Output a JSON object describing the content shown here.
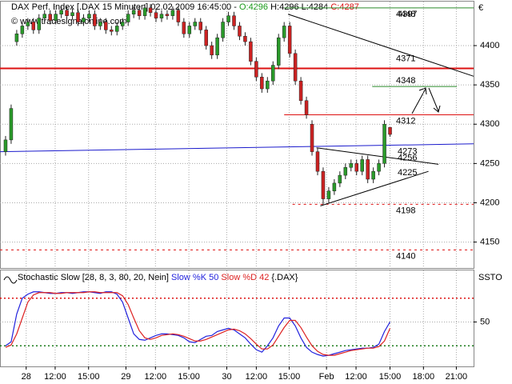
{
  "chart_data": {
    "type": "candlestick",
    "header": [
      "DAX Perf. Index [.DAX  15 Minuten] 02.02.2009 16:45:00 - ",
      "O:4296",
      " H:4296 L:4284 ",
      "C:4287"
    ],
    "watermark": "© www.tradesignalonline.com",
    "currency": "€",
    "up_color": "#2a9a2a",
    "down_color": "#cc2222",
    "xlim": [
      0,
      85
    ],
    "xticks": [
      {
        "value": 4.7,
        "label": "28"
      },
      {
        "value": 9.9,
        "label": "12:00"
      },
      {
        "value": 15.9,
        "label": "15:00"
      },
      {
        "value": 22.6,
        "label": "29"
      },
      {
        "value": 27.9,
        "label": "12:00"
      },
      {
        "value": 33.9,
        "label": "15:00"
      },
      {
        "value": 40.7,
        "label": "30"
      },
      {
        "value": 46,
        "label": "12:00"
      },
      {
        "value": 51.9,
        "label": "15:00"
      },
      {
        "value": 58.6,
        "label": "Feb"
      },
      {
        "value": 63.9,
        "label": "12:00"
      },
      {
        "value": 70,
        "label": "15:00"
      },
      {
        "value": 76,
        "label": "18:00"
      },
      {
        "value": 81.9,
        "label": "21:00"
      }
    ],
    "ylim": [
      4117,
      4456
    ],
    "yticks": [
      4150,
      4200,
      4250,
      4300,
      4350,
      4400
    ],
    "grid": true,
    "open": [
      4265,
      4280,
      4405,
      4415,
      4425,
      4430,
      4420,
      4435,
      4440,
      4432,
      4440,
      4445,
      4438,
      4442,
      4430,
      4435,
      4440,
      4425,
      4430,
      4420,
      4418,
      4425,
      4430,
      4440,
      4445,
      4438,
      4448,
      4442,
      4435,
      4440,
      4438,
      4445,
      4430,
      4415,
      4425,
      4430,
      4420,
      4400,
      4388,
      4410,
      4430,
      4438,
      4425,
      4412,
      4405,
      4380,
      4360,
      4345,
      4355,
      4375,
      4410,
      4425,
      4390,
      4355,
      4330,
      4300,
      4265,
      4240,
      4205,
      4215,
      4225,
      4235,
      4245,
      4250,
      4240,
      4255,
      4230,
      4240,
      4250,
      4296
    ],
    "high": [
      4285,
      4325,
      4420,
      4430,
      4435,
      4435,
      4440,
      4445,
      4445,
      4445,
      4450,
      4450,
      4447,
      4447,
      4440,
      4445,
      4445,
      4435,
      4435,
      4425,
      4430,
      4435,
      4445,
      4450,
      4450,
      4453,
      4453,
      4447,
      4445,
      4445,
      4450,
      4450,
      4435,
      4430,
      4435,
      4435,
      4425,
      4405,
      4415,
      4435,
      4443,
      4443,
      4430,
      4417,
      4410,
      4385,
      4365,
      4360,
      4380,
      4415,
      4430,
      4430,
      4395,
      4360,
      4335,
      4305,
      4270,
      4245,
      4220,
      4230,
      4240,
      4250,
      4255,
      4255,
      4260,
      4260,
      4245,
      4255,
      4305,
      4296
    ],
    "low": [
      4260,
      4275,
      4400,
      4410,
      4420,
      4415,
      4415,
      4430,
      4427,
      4427,
      4435,
      4433,
      4433,
      4425,
      4425,
      4430,
      4420,
      4420,
      4415,
      4413,
      4413,
      4420,
      4425,
      4435,
      4433,
      4433,
      4437,
      4430,
      4430,
      4433,
      4433,
      4425,
      4410,
      4410,
      4420,
      4415,
      4395,
      4383,
      4383,
      4405,
      4425,
      4420,
      4407,
      4400,
      4375,
      4355,
      4340,
      4340,
      4350,
      4370,
      4405,
      4385,
      4350,
      4325,
      4307,
      4260,
      4235,
      4198,
      4200,
      4210,
      4220,
      4230,
      4240,
      4235,
      4235,
      4225,
      4225,
      4235,
      4245,
      4284
    ],
    "close": [
      4280,
      4320,
      4415,
      4425,
      4430,
      4420,
      4435,
      4440,
      4432,
      4440,
      4445,
      4438,
      4442,
      4430,
      4435,
      4440,
      4425,
      4430,
      4420,
      4418,
      4425,
      4430,
      4440,
      4445,
      4438,
      4448,
      4442,
      4435,
      4440,
      4438,
      4445,
      4430,
      4415,
      4425,
      4430,
      4420,
      4400,
      4388,
      4410,
      4430,
      4438,
      4425,
      4412,
      4405,
      4380,
      4360,
      4345,
      4355,
      4375,
      4410,
      4425,
      4390,
      4355,
      4330,
      4312,
      4265,
      4240,
      4205,
      4215,
      4225,
      4235,
      4245,
      4250,
      4240,
      4255,
      4230,
      4240,
      4250,
      4300,
      4287
    ],
    "levels": [
      {
        "value": 4448,
        "color": "#2a8a2a",
        "from": 51,
        "to": 85,
        "style": "solid"
      },
      {
        "value": 4371,
        "color": "#dd1111",
        "from": 0,
        "to": 85,
        "style": "thick"
      },
      {
        "value": 4348,
        "color": "#2a8a2a",
        "from": 66.8,
        "to": 82,
        "style": "solid"
      },
      {
        "value": 4312,
        "color": "#dd1111",
        "from": 51,
        "to": 85,
        "style": "solid"
      },
      {
        "value": 4198,
        "color": "#dd1111",
        "from": 52.5,
        "to": 85,
        "style": "dotted"
      },
      {
        "value": 4140,
        "color": "#dd1111",
        "from": 0,
        "to": 85,
        "style": "dotted"
      }
    ],
    "trendlines": [
      {
        "value": 4397,
        "color": "#000000",
        "from": [
          51.7,
          4440
        ],
        "to": [
          85,
          4361
        ]
      },
      {
        "value": 4273,
        "color": "#1a1acc",
        "from": [
          0,
          4265
        ],
        "to": [
          85,
          4275
        ]
      },
      {
        "value": 4256,
        "color": "#000000",
        "label_color": "#dd1111",
        "from": [
          56.8,
          4270
        ],
        "to": [
          78.7,
          4249
        ]
      },
      {
        "value": 4225,
        "color": "#000000",
        "from": [
          57.5,
          4196
        ],
        "to": [
          76.9,
          4240
        ]
      }
    ],
    "indicator": {
      "title": "Stochastic Slow [28, 8, 3, 80, 20, Nein]",
      "source": " {.DAX}",
      "axis_label": "SSTO",
      "ylim": [
        -6,
        115
      ],
      "yticks": [
        50
      ],
      "bands": [
        {
          "value": 80,
          "color": "#dd1111"
        },
        {
          "value": 20,
          "color": "#1a7a1a"
        }
      ],
      "series": [
        {
          "name": "Slow %K",
          "color": "#2222dd",
          "values": [
            20,
            25,
            60,
            80,
            85,
            88,
            88,
            87,
            86,
            86,
            87,
            87,
            86,
            87,
            88,
            88,
            87,
            86,
            88,
            88,
            85,
            75,
            55,
            35,
            28,
            27,
            30,
            33,
            35,
            35,
            34,
            33,
            30,
            25,
            24,
            28,
            32,
            33,
            38,
            40,
            42,
            40,
            35,
            30,
            22,
            15,
            12,
            20,
            30,
            45,
            55,
            55,
            45,
            30,
            18,
            12,
            9,
            7,
            8,
            10,
            12,
            14,
            15,
            16,
            17,
            17,
            18,
            22,
            38,
            50
          ]
        },
        {
          "name": "Slow %D",
          "color": "#dd2222",
          "values": [
            18,
            21,
            35,
            55,
            75,
            84,
            87,
            87,
            87,
            86,
            86,
            87,
            87,
            87,
            87,
            88,
            88,
            87,
            87,
            87,
            87,
            83,
            72,
            55,
            39,
            30,
            28,
            30,
            33,
            34,
            35,
            34,
            32,
            29,
            26,
            26,
            28,
            31,
            34,
            37,
            40,
            41,
            39,
            35,
            29,
            22,
            16,
            16,
            21,
            32,
            43,
            52,
            52,
            43,
            31,
            20,
            13,
            9,
            8,
            8,
            10,
            12,
            14,
            15,
            16,
            17,
            17,
            19,
            26,
            42
          ]
        }
      ]
    }
  }
}
